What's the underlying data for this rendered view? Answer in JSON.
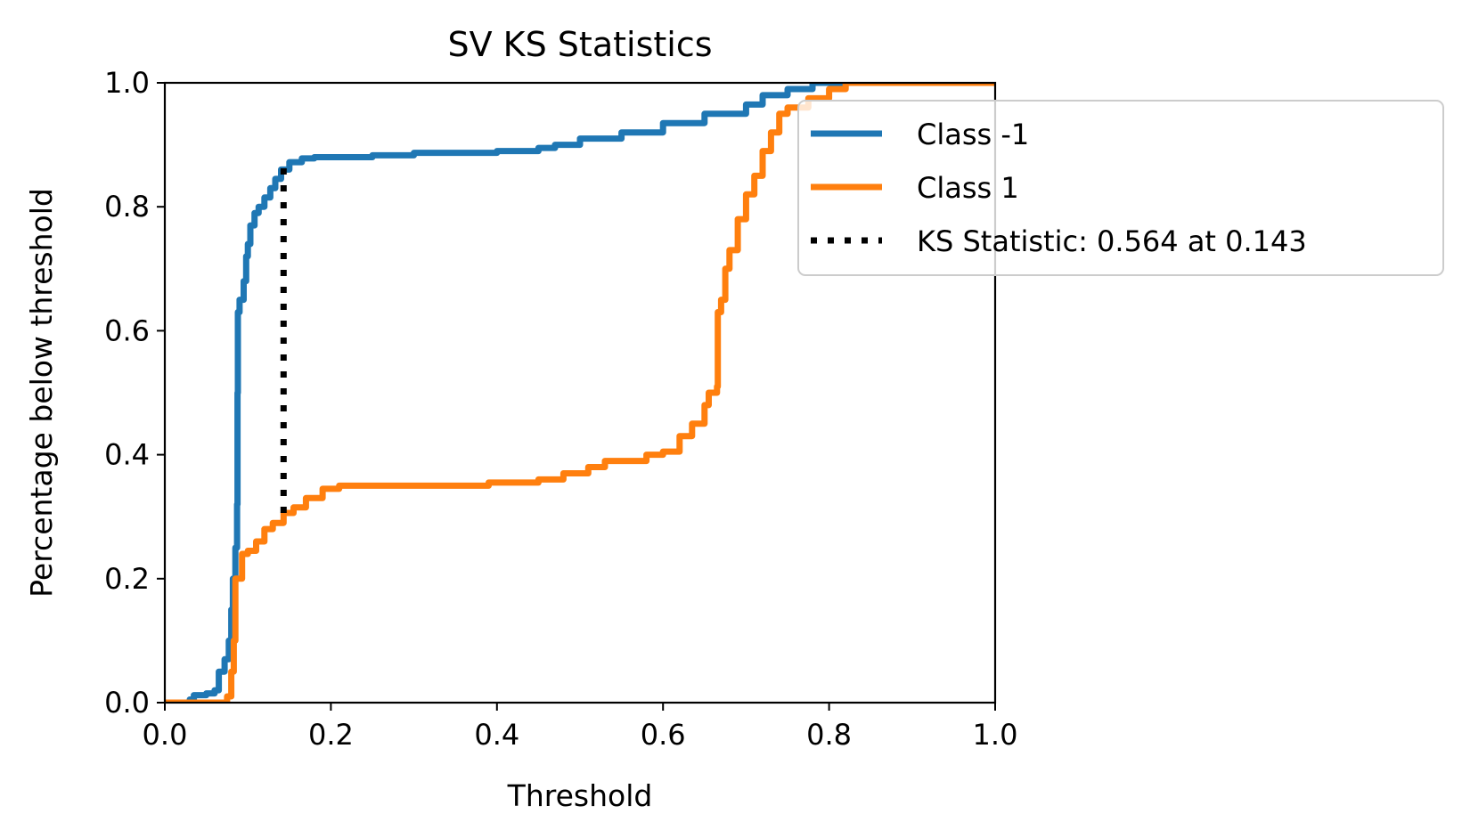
{
  "chart_data": {
    "type": "line",
    "title": "SV KS Statistics",
    "xlabel": "Threshold",
    "ylabel": "Percentage below threshold",
    "xlim": [
      0.0,
      1.0
    ],
    "ylim": [
      0.0,
      1.0
    ],
    "x_ticks": [
      "0.0",
      "0.2",
      "0.4",
      "0.6",
      "0.8",
      "1.0"
    ],
    "y_ticks": [
      "0.0",
      "0.2",
      "0.4",
      "0.6",
      "0.8",
      "1.0"
    ],
    "grid": false,
    "legend_position": "top-right",
    "series": [
      {
        "name": "Class -1",
        "color": "#1f77b4",
        "style": "solid",
        "points": [
          [
            0.0,
            0.0
          ],
          [
            0.03,
            0.005
          ],
          [
            0.035,
            0.012
          ],
          [
            0.05,
            0.015
          ],
          [
            0.06,
            0.02
          ],
          [
            0.065,
            0.05
          ],
          [
            0.072,
            0.07
          ],
          [
            0.077,
            0.1
          ],
          [
            0.08,
            0.15
          ],
          [
            0.082,
            0.2
          ],
          [
            0.085,
            0.25
          ],
          [
            0.087,
            0.32
          ],
          [
            0.0875,
            0.5
          ],
          [
            0.088,
            0.63
          ],
          [
            0.09,
            0.65
          ],
          [
            0.095,
            0.68
          ],
          [
            0.098,
            0.72
          ],
          [
            0.1,
            0.74
          ],
          [
            0.103,
            0.77
          ],
          [
            0.108,
            0.79
          ],
          [
            0.113,
            0.8
          ],
          [
            0.12,
            0.815
          ],
          [
            0.127,
            0.83
          ],
          [
            0.133,
            0.845
          ],
          [
            0.14,
            0.86
          ],
          [
            0.15,
            0.872
          ],
          [
            0.165,
            0.878
          ],
          [
            0.18,
            0.88
          ],
          [
            0.25,
            0.883
          ],
          [
            0.3,
            0.887
          ],
          [
            0.4,
            0.89
          ],
          [
            0.45,
            0.895
          ],
          [
            0.47,
            0.9
          ],
          [
            0.5,
            0.91
          ],
          [
            0.55,
            0.92
          ],
          [
            0.6,
            0.935
          ],
          [
            0.65,
            0.95
          ],
          [
            0.7,
            0.965
          ],
          [
            0.72,
            0.98
          ],
          [
            0.75,
            0.99
          ],
          [
            0.78,
            1.0
          ],
          [
            1.0,
            1.0
          ]
        ]
      },
      {
        "name": "Class 1",
        "color": "#ff7f0e",
        "style": "solid",
        "points": [
          [
            0.0,
            0.0
          ],
          [
            0.07,
            0.0
          ],
          [
            0.075,
            0.01
          ],
          [
            0.08,
            0.05
          ],
          [
            0.083,
            0.1
          ],
          [
            0.085,
            0.2
          ],
          [
            0.09,
            0.2
          ],
          [
            0.093,
            0.24
          ],
          [
            0.1,
            0.245
          ],
          [
            0.11,
            0.26
          ],
          [
            0.12,
            0.28
          ],
          [
            0.13,
            0.29
          ],
          [
            0.143,
            0.306
          ],
          [
            0.155,
            0.315
          ],
          [
            0.17,
            0.33
          ],
          [
            0.19,
            0.345
          ],
          [
            0.21,
            0.35
          ],
          [
            0.37,
            0.35
          ],
          [
            0.39,
            0.355
          ],
          [
            0.45,
            0.36
          ],
          [
            0.48,
            0.37
          ],
          [
            0.51,
            0.38
          ],
          [
            0.53,
            0.39
          ],
          [
            0.56,
            0.39
          ],
          [
            0.58,
            0.4
          ],
          [
            0.6,
            0.405
          ],
          [
            0.62,
            0.43
          ],
          [
            0.635,
            0.45
          ],
          [
            0.65,
            0.48
          ],
          [
            0.655,
            0.5
          ],
          [
            0.665,
            0.51
          ],
          [
            0.666,
            0.63
          ],
          [
            0.67,
            0.65
          ],
          [
            0.675,
            0.7
          ],
          [
            0.68,
            0.73
          ],
          [
            0.69,
            0.78
          ],
          [
            0.7,
            0.82
          ],
          [
            0.71,
            0.85
          ],
          [
            0.72,
            0.89
          ],
          [
            0.73,
            0.92
          ],
          [
            0.74,
            0.95
          ],
          [
            0.75,
            0.96
          ],
          [
            0.775,
            0.975
          ],
          [
            0.8,
            0.99
          ],
          [
            0.82,
            1.0
          ],
          [
            1.0,
            1.0
          ]
        ]
      },
      {
        "name": "KS Statistic: 0.564 at 0.143",
        "color": "#000000",
        "style": "dotted",
        "points": [
          [
            0.143,
            0.306
          ],
          [
            0.143,
            0.87
          ]
        ]
      }
    ]
  }
}
